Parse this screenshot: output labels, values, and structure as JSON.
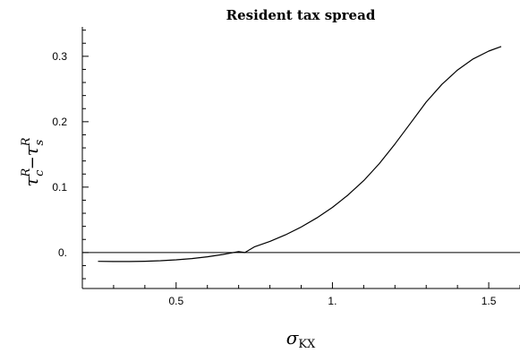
{
  "chart_data": {
    "type": "line",
    "title": "Resident tax spread",
    "xlabel": {
      "symbol": "σ",
      "subscript": "KX"
    },
    "ylabel": {
      "tau": "τ",
      "sup": "R",
      "sub_c": "c",
      "minus": "−",
      "sub_s": "s"
    },
    "xlim": [
      0.2,
      1.6
    ],
    "ylim": [
      -0.055,
      0.345
    ],
    "x_major_ticks": [
      0.5,
      1.0,
      1.5
    ],
    "x_tick_labels": [
      "0.5",
      "1.",
      "1.5"
    ],
    "x_minor_ticks": [
      0.3,
      0.4,
      0.6,
      0.7,
      0.8,
      0.9,
      1.1,
      1.2,
      1.3,
      1.4,
      1.6
    ],
    "y_major_ticks": [
      0.0,
      0.1,
      0.2,
      0.3
    ],
    "y_tick_labels": [
      "0.",
      "0.1",
      "0.2",
      "0.3"
    ],
    "y_minor_ticks": [
      -0.04,
      -0.02,
      0.02,
      0.04,
      0.06,
      0.08,
      0.12,
      0.14,
      0.16,
      0.18,
      0.22,
      0.24,
      0.26,
      0.28,
      0.32,
      0.34
    ],
    "zero_line": 0,
    "grid": false,
    "series": [
      {
        "color": "#000000",
        "x": [
          0.25,
          0.3,
          0.35,
          0.4,
          0.45,
          0.5,
          0.55,
          0.6,
          0.65,
          0.7,
          0.72,
          0.75,
          0.8,
          0.85,
          0.9,
          0.95,
          1.0,
          1.05,
          1.1,
          1.15,
          1.2,
          1.25,
          1.3,
          1.35,
          1.4,
          1.45,
          1.5,
          1.54
        ],
        "y": [
          -0.0135,
          -0.0137,
          -0.0137,
          -0.0133,
          -0.0125,
          -0.0112,
          -0.0092,
          -0.0065,
          -0.003,
          0.0015,
          0.0,
          0.0085,
          0.017,
          0.027,
          0.039,
          0.053,
          0.069,
          0.088,
          0.11,
          0.136,
          0.166,
          0.198,
          0.23,
          0.257,
          0.279,
          0.296,
          0.308,
          0.315
        ]
      }
    ]
  }
}
